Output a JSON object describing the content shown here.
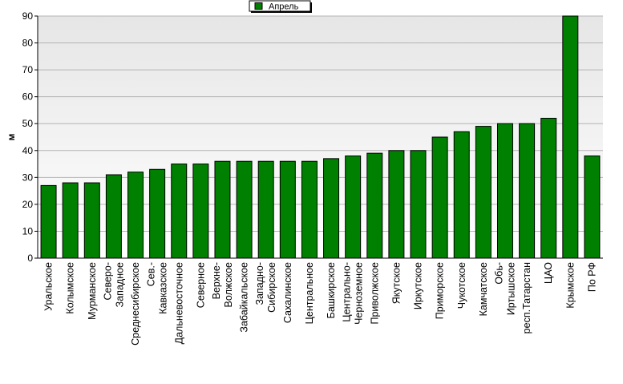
{
  "chart_data": {
    "type": "bar",
    "ylabel": "м",
    "xlabel": "",
    "title": "",
    "ylim": [
      0,
      90
    ],
    "yticks": [
      0,
      10,
      20,
      30,
      40,
      50,
      60,
      70,
      80,
      90
    ],
    "grid": true,
    "legend_position": "top-center",
    "colors": {
      "bar": "#008000",
      "bar_outline": "#000000",
      "plot_bg_top": "#e6e6e6",
      "plot_bg_bottom": "#ffffff",
      "grid": "#b4b4b4"
    },
    "series": [
      {
        "name": "Апрель"
      }
    ],
    "categories": [
      [
        "Уральское"
      ],
      [
        "Колымское"
      ],
      [
        "Мурманское"
      ],
      [
        "Северо-",
        "Западное"
      ],
      [
        "Среднесибирское"
      ],
      [
        "Сев.-",
        "Кавказское"
      ],
      [
        "Дальневосточное"
      ],
      [
        "Северное"
      ],
      [
        "Верхне-",
        "Волжское"
      ],
      [
        "Забайкальское"
      ],
      [
        "Западно-",
        "Сибирское"
      ],
      [
        "Сахалинское"
      ],
      [
        "Центральное"
      ],
      [
        "Башкирское"
      ],
      [
        "Центрально-",
        "Черноземное"
      ],
      [
        "Приволжское"
      ],
      [
        "Якутское"
      ],
      [
        "Иркутское"
      ],
      [
        "Приморское"
      ],
      [
        "Чукотское"
      ],
      [
        "Камчатское"
      ],
      [
        "Обь-",
        "Иртышское"
      ],
      [
        "респ.Татарстан"
      ],
      [
        "ЦАО"
      ],
      [
        "Крымское"
      ],
      [
        "По РФ"
      ]
    ],
    "values": [
      27,
      28,
      28,
      31,
      32,
      33,
      35,
      35,
      36,
      36,
      36,
      36,
      36,
      37,
      38,
      39,
      40,
      40,
      45,
      47,
      49,
      50,
      50,
      52,
      90,
      38
    ]
  }
}
